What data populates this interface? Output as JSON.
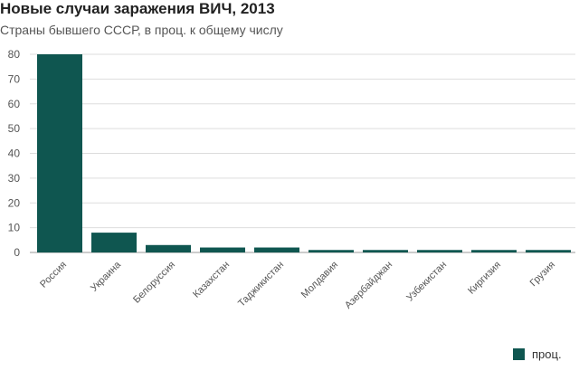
{
  "title": "Новые случаи заражения ВИЧ, 2013",
  "subtitle": "Страны бывшего СССР, в проц. к общему числу",
  "colors": {
    "bar": "#0f5650",
    "grid": "#dddddd",
    "axis": "#999999",
    "tick_text": "#555555"
  },
  "chart_data": {
    "type": "bar",
    "title": "Новые случаи заражения ВИЧ, 2013",
    "subtitle": "Страны бывшего СССР, в проц. к общему числу",
    "categories": [
      "Россия",
      "Украина",
      "Белоруссия",
      "Казахстан",
      "Таджикистан",
      "Молдавия",
      "Азербайджан",
      "Узбекистан",
      "Киргизия",
      "Грузия"
    ],
    "series": [
      {
        "name": "проц.",
        "values": [
          80,
          8,
          3,
          2,
          2,
          1,
          1,
          1,
          1,
          1
        ]
      }
    ],
    "yticks": [
      0,
      10,
      20,
      30,
      40,
      50,
      60,
      70,
      80
    ],
    "ylim": [
      0,
      80
    ],
    "grid": true,
    "legend": "bottom-right"
  }
}
